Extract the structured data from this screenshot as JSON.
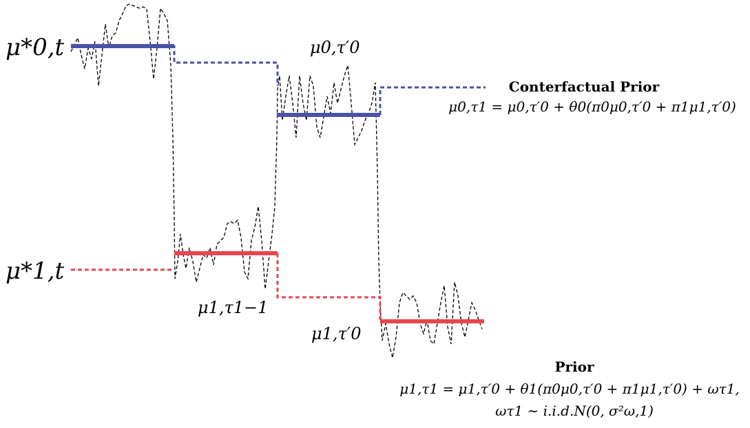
{
  "colors": {
    "blue": "#4a52a8",
    "red": "#e8464c",
    "noise": "#000000",
    "background": "#ffffff"
  },
  "row_labels": {
    "top": "μ*0,t",
    "bottom": "μ*1,t"
  },
  "segment_labels": {
    "mu0_tau0prime": "μ0,τ′0",
    "mu1_tau1_minus1": "μ1,τ1−1",
    "mu1_tau0prime": "μ1,τ′0"
  },
  "counterfactual": {
    "title": "Conterfactual Prior",
    "equation": "μ0,τ1 = μ0,τ′0 + θ0(π0μ0,τ′0 + π1μ1,τ′0)"
  },
  "prior": {
    "title": "Prior",
    "equation_line1": "μ1,τ1 = μ1,τ′0 + θ1(π0μ0,τ′0 + π1μ1,τ′0) + ωτ1,",
    "equation_line2": "ωτ1 ∼ i.i.d.N(0, σ²ω,1)"
  }
}
